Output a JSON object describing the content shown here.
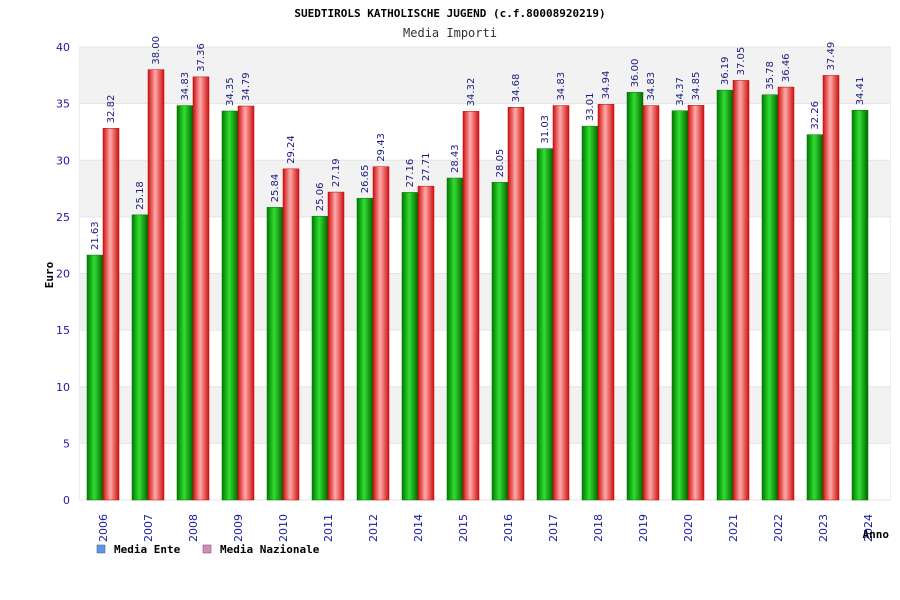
{
  "chart_data": {
    "type": "bar",
    "title": "SUEDTIROLS KATHOLISCHE JUGEND (c.f.80008920219)",
    "subtitle": "Media Importi",
    "xlabel": "Anno",
    "ylabel": "Euro",
    "ylim": [
      0,
      40
    ],
    "yticks": [
      "0",
      "5",
      "10",
      "15",
      "20",
      "25",
      "30",
      "35",
      "40"
    ],
    "categories": [
      "2006",
      "2007",
      "2008",
      "2009",
      "2010",
      "2011",
      "2012",
      "2014",
      "2015",
      "2016",
      "2017",
      "2018",
      "2019",
      "2020",
      "2021",
      "2022",
      "2023",
      "2024"
    ],
    "series": [
      {
        "name": "Media Ente",
        "color": "#00aa00",
        "legend_color": "#5599ee",
        "values": [
          21.63,
          25.18,
          34.83,
          34.35,
          25.84,
          25.06,
          26.65,
          27.16,
          28.43,
          28.05,
          31.03,
          33.01,
          36.0,
          34.37,
          36.19,
          35.78,
          32.26,
          34.41
        ],
        "labels": [
          "21.63",
          "25.18",
          "34.83",
          "34.35",
          "25.84",
          "25.06",
          "26.65",
          "27.16",
          "28.43",
          "28.05",
          "31.03",
          "33.01",
          "36.00",
          "34.37",
          "36.19",
          "35.78",
          "32.26",
          "34.41"
        ]
      },
      {
        "name": "Media Nazionale",
        "color": "#ee2222",
        "legend_color": "#dd88bb",
        "values": [
          32.82,
          38.0,
          37.36,
          34.79,
          29.24,
          27.19,
          29.43,
          27.71,
          34.32,
          34.68,
          34.83,
          34.94,
          34.83,
          34.85,
          37.05,
          36.46,
          37.49,
          null
        ],
        "labels": [
          "32.82",
          "38.00",
          "37.36",
          "34.79",
          "29.24",
          "27.19",
          "29.43",
          "27.71",
          "34.32",
          "34.68",
          "34.83",
          "34.94",
          "34.83",
          "34.85",
          "37.05",
          "36.46",
          "37.49",
          ""
        ]
      }
    ],
    "grid": true,
    "legend_position": "bottom-left"
  }
}
